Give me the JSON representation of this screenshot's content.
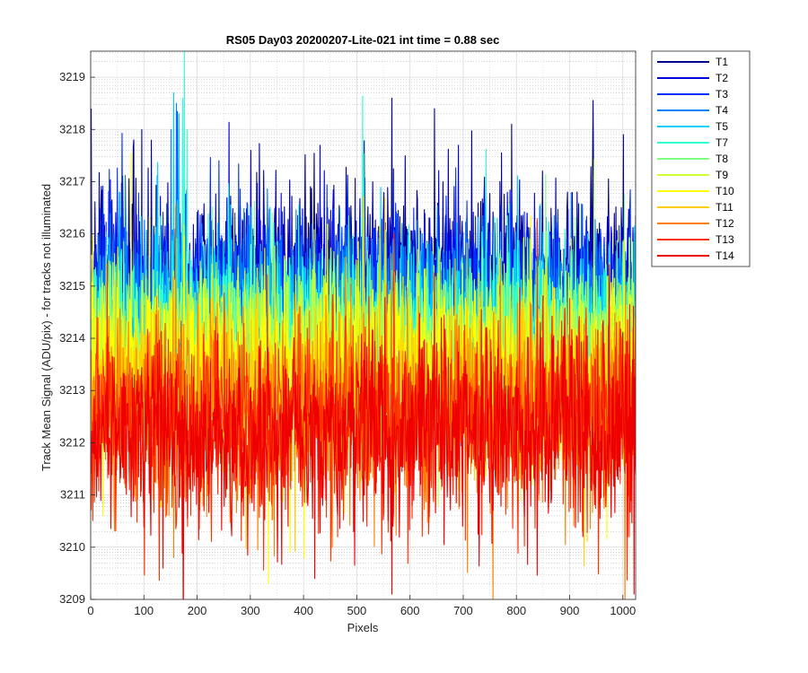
{
  "chart_data": {
    "type": "line",
    "title": "RS05 Day03 20200207-Lite-021 int time = 0.88 sec",
    "xlabel": "Pixels",
    "ylabel": "Track Mean Signal (ADU/pix) - for tracks not illuminated",
    "xlim": [
      0,
      1024
    ],
    "ylim": [
      3209,
      3219.5
    ],
    "xticks": [
      0,
      100,
      200,
      300,
      400,
      500,
      600,
      700,
      800,
      900,
      1000
    ],
    "yticks": [
      3209,
      3210,
      3211,
      3212,
      3213,
      3214,
      3215,
      3216,
      3217,
      3218,
      3219
    ],
    "grid": true,
    "minor_grid": true,
    "legend_position": "outside-top-right",
    "n_points": 1024,
    "series": [
      {
        "name": "T1",
        "color": "#00008F",
        "mean": 3215.2,
        "noise": 0.85,
        "peaks": [
          [
            0,
            3218.4
          ],
          [
            80,
            3217.8
          ],
          [
            565,
            3218.6
          ],
          [
            645,
            3218.4
          ],
          [
            790,
            3218.1
          ],
          [
            1000,
            3217.9
          ]
        ]
      },
      {
        "name": "T2",
        "color": "#0000DF",
        "mean": 3215.0,
        "noise": 0.8,
        "peaks": [
          [
            300,
            3217.6
          ],
          [
            430,
            3217.7
          ],
          [
            690,
            3217.7
          ]
        ]
      },
      {
        "name": "T3",
        "color": "#0030FF",
        "mean": 3214.8,
        "noise": 0.8,
        "peaks": [
          [
            240,
            3217.4
          ]
        ]
      },
      {
        "name": "T4",
        "color": "#0080FF",
        "mean": 3214.6,
        "noise": 0.75,
        "peaks": [
          [
            150,
            3218.0
          ],
          [
            160,
            3218.5
          ]
        ]
      },
      {
        "name": "T5",
        "color": "#00CFFF",
        "mean": 3214.4,
        "noise": 0.7,
        "peaks": [
          [
            155,
            3218.7
          ],
          [
            165,
            3218.3
          ]
        ]
      },
      {
        "name": "T7",
        "color": "#30FFCF",
        "mean": 3214.2,
        "noise": 0.7,
        "peaks": [
          [
            175,
            3219.5
          ],
          [
            172,
            3218.6
          ],
          [
            180,
            3218.0
          ]
        ]
      },
      {
        "name": "T8",
        "color": "#80FF80",
        "mean": 3214.0,
        "noise": 0.75,
        "peaks": []
      },
      {
        "name": "T9",
        "color": "#CFFF30",
        "mean": 3213.8,
        "noise": 0.8,
        "peaks": []
      },
      {
        "name": "T10",
        "color": "#FFFF00",
        "mean": 3213.4,
        "noise": 0.85,
        "peaks": [
          [
            333,
            3209.3
          ],
          [
            400,
            3209.8
          ]
        ]
      },
      {
        "name": "T11",
        "color": "#FFCF00",
        "mean": 3213.0,
        "noise": 0.85,
        "peaks": []
      },
      {
        "name": "T12",
        "color": "#FF8000",
        "mean": 3212.6,
        "noise": 0.9,
        "peaks": [
          [
            155,
            3209.8
          ],
          [
            755,
            3209.0
          ]
        ]
      },
      {
        "name": "T13",
        "color": "#FF3000",
        "mean": 3212.4,
        "noise": 0.9,
        "peaks": []
      },
      {
        "name": "T14",
        "color": "#EF0000",
        "mean": 3212.2,
        "noise": 0.9,
        "peaks": [
          [
            135,
            3209.6
          ],
          [
            565,
            3209.1
          ],
          [
            420,
            3209.4
          ],
          [
            1020,
            3209.1
          ]
        ]
      }
    ]
  }
}
